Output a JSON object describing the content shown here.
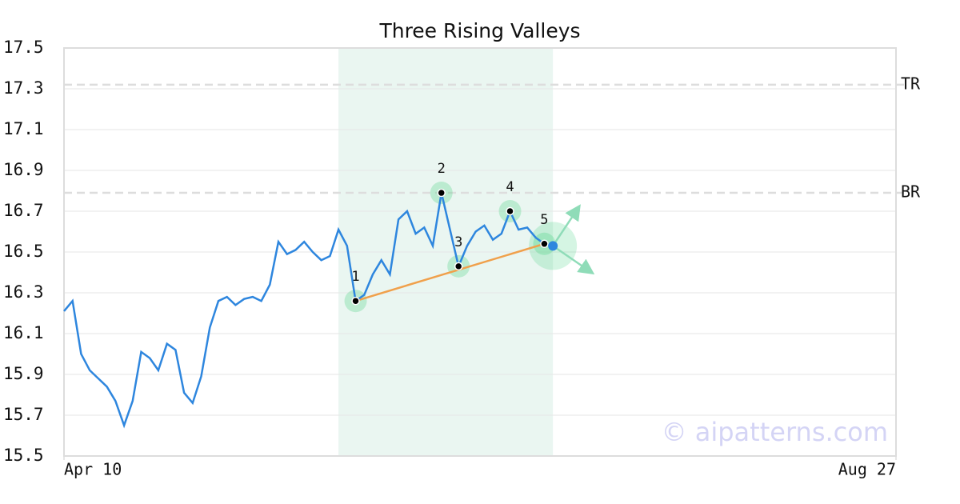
{
  "chart_data": {
    "type": "line",
    "title": "Three Rising Valleys",
    "x": [
      0,
      1,
      2,
      3,
      4,
      5,
      6,
      7,
      8,
      9,
      10,
      11,
      12,
      13,
      14,
      15,
      16,
      17,
      18,
      19,
      20,
      21,
      22,
      23,
      24,
      25,
      26,
      27,
      28,
      29,
      30,
      31,
      32,
      33,
      34,
      35,
      36,
      37,
      38,
      39,
      40,
      41,
      42,
      43,
      44,
      45,
      46,
      47,
      48,
      49,
      50,
      51,
      52,
      53,
      54,
      55,
      56,
      57
    ],
    "values": [
      16.21,
      16.26,
      16.0,
      15.92,
      15.88,
      15.84,
      15.77,
      15.65,
      15.77,
      16.01,
      15.98,
      15.92,
      16.05,
      16.02,
      15.81,
      15.76,
      15.89,
      16.13,
      16.26,
      16.28,
      16.24,
      16.27,
      16.28,
      16.26,
      16.34,
      16.55,
      16.49,
      16.51,
      16.55,
      16.5,
      16.46,
      16.48,
      16.61,
      16.53,
      16.26,
      16.29,
      16.39,
      16.46,
      16.39,
      16.66,
      16.7,
      16.59,
      16.62,
      16.53,
      16.79,
      16.61,
      16.43,
      16.53,
      16.6,
      16.63,
      16.56,
      16.59,
      16.7,
      16.61,
      16.62,
      16.57,
      16.54,
      16.53
    ],
    "color": "#2e86de",
    "xlim": [
      0,
      97
    ],
    "xticks": [
      {
        "value": 0,
        "label": "Apr 10"
      },
      {
        "value": 97,
        "label": "Aug 27"
      }
    ],
    "ylim": [
      15.5,
      17.5
    ],
    "yticks": [
      15.5,
      15.7,
      15.9,
      16.1,
      16.3,
      16.5,
      16.7,
      16.9,
      17.1,
      17.3,
      17.5
    ],
    "grid": true,
    "shaded_range": [
      32,
      57
    ],
    "levels": [
      {
        "name": "TR",
        "value": 17.32
      },
      {
        "name": "BR",
        "value": 16.79
      }
    ],
    "pattern_points": [
      {
        "label": "1",
        "x": 34,
        "y": 16.26
      },
      {
        "label": "2",
        "x": 44,
        "y": 16.79
      },
      {
        "label": "3",
        "x": 46,
        "y": 16.43
      },
      {
        "label": "4",
        "x": 52,
        "y": 16.7
      },
      {
        "label": "5",
        "x": 56,
        "y": 16.54
      }
    ],
    "trend_color": "#f0a04b",
    "watermark": "© aipatterns.com"
  }
}
